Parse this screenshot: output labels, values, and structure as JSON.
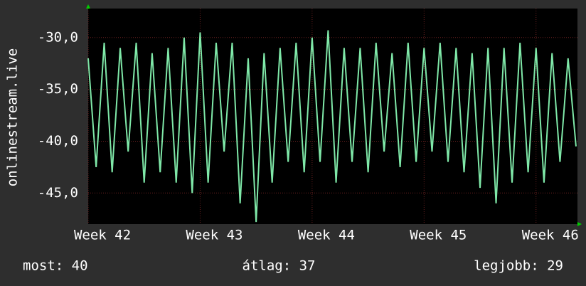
{
  "chart_data": {
    "type": "line",
    "ylabel": "onlinestream.live",
    "x": [
      42.0,
      42.071,
      42.143,
      42.214,
      42.286,
      42.357,
      42.429,
      42.5,
      42.571,
      42.643,
      42.714,
      42.786,
      42.857,
      42.929,
      43.0,
      43.071,
      43.143,
      43.214,
      43.286,
      43.357,
      43.429,
      43.5,
      43.571,
      43.643,
      43.714,
      43.786,
      43.857,
      43.929,
      44.0,
      44.071,
      44.143,
      44.214,
      44.286,
      44.357,
      44.429,
      44.5,
      44.571,
      44.643,
      44.714,
      44.786,
      44.857,
      44.929,
      45.0,
      45.071,
      45.143,
      45.214,
      45.286,
      45.357,
      45.429,
      45.5,
      45.571,
      45.643,
      45.714,
      45.786,
      45.857,
      45.929,
      46.0,
      46.071,
      46.143,
      46.214,
      46.286,
      46.357
    ],
    "series": [
      {
        "color": "#7fe8a8",
        "values": [
          -32,
          -42.5,
          -30.5,
          -43,
          -31,
          -41,
          -30.5,
          -44,
          -31.5,
          -43,
          -31,
          -44,
          -30,
          -45,
          -29.5,
          -44,
          -30.5,
          -41,
          -30.5,
          -46,
          -32,
          -47.8,
          -31.5,
          -44,
          -31,
          -42,
          -30.5,
          -43,
          -30,
          -42,
          -29.3,
          -44,
          -31,
          -42,
          -31,
          -43,
          -30.5,
          -41,
          -31.5,
          -42.5,
          -30.5,
          -42,
          -31,
          -41,
          -30.5,
          -42,
          -31,
          -43,
          -31.5,
          -44.5,
          -31,
          -46,
          -31,
          -44,
          -30.5,
          -43,
          -31,
          -44,
          -31.5,
          -42,
          -32,
          -40.5
        ]
      }
    ],
    "xlim": [
      42,
      46.37
    ],
    "xticks": [
      {
        "value": 42,
        "label": "Week 42"
      },
      {
        "value": 43,
        "label": "Week 43"
      },
      {
        "value": 44,
        "label": "Week 44"
      },
      {
        "value": 45,
        "label": "Week 45"
      },
      {
        "value": 46,
        "label": "Week 46"
      }
    ],
    "ylim": [
      -48,
      -27.2
    ],
    "yticks": [
      {
        "value": -30,
        "label": "-30,0"
      },
      {
        "value": -35,
        "label": "-35,0"
      },
      {
        "value": -40,
        "label": "-40,0"
      },
      {
        "value": -45,
        "label": "-45,0"
      }
    ],
    "grid": true,
    "footer": [
      "most: 40",
      "átlag: 37",
      "legjobb: 29"
    ]
  }
}
